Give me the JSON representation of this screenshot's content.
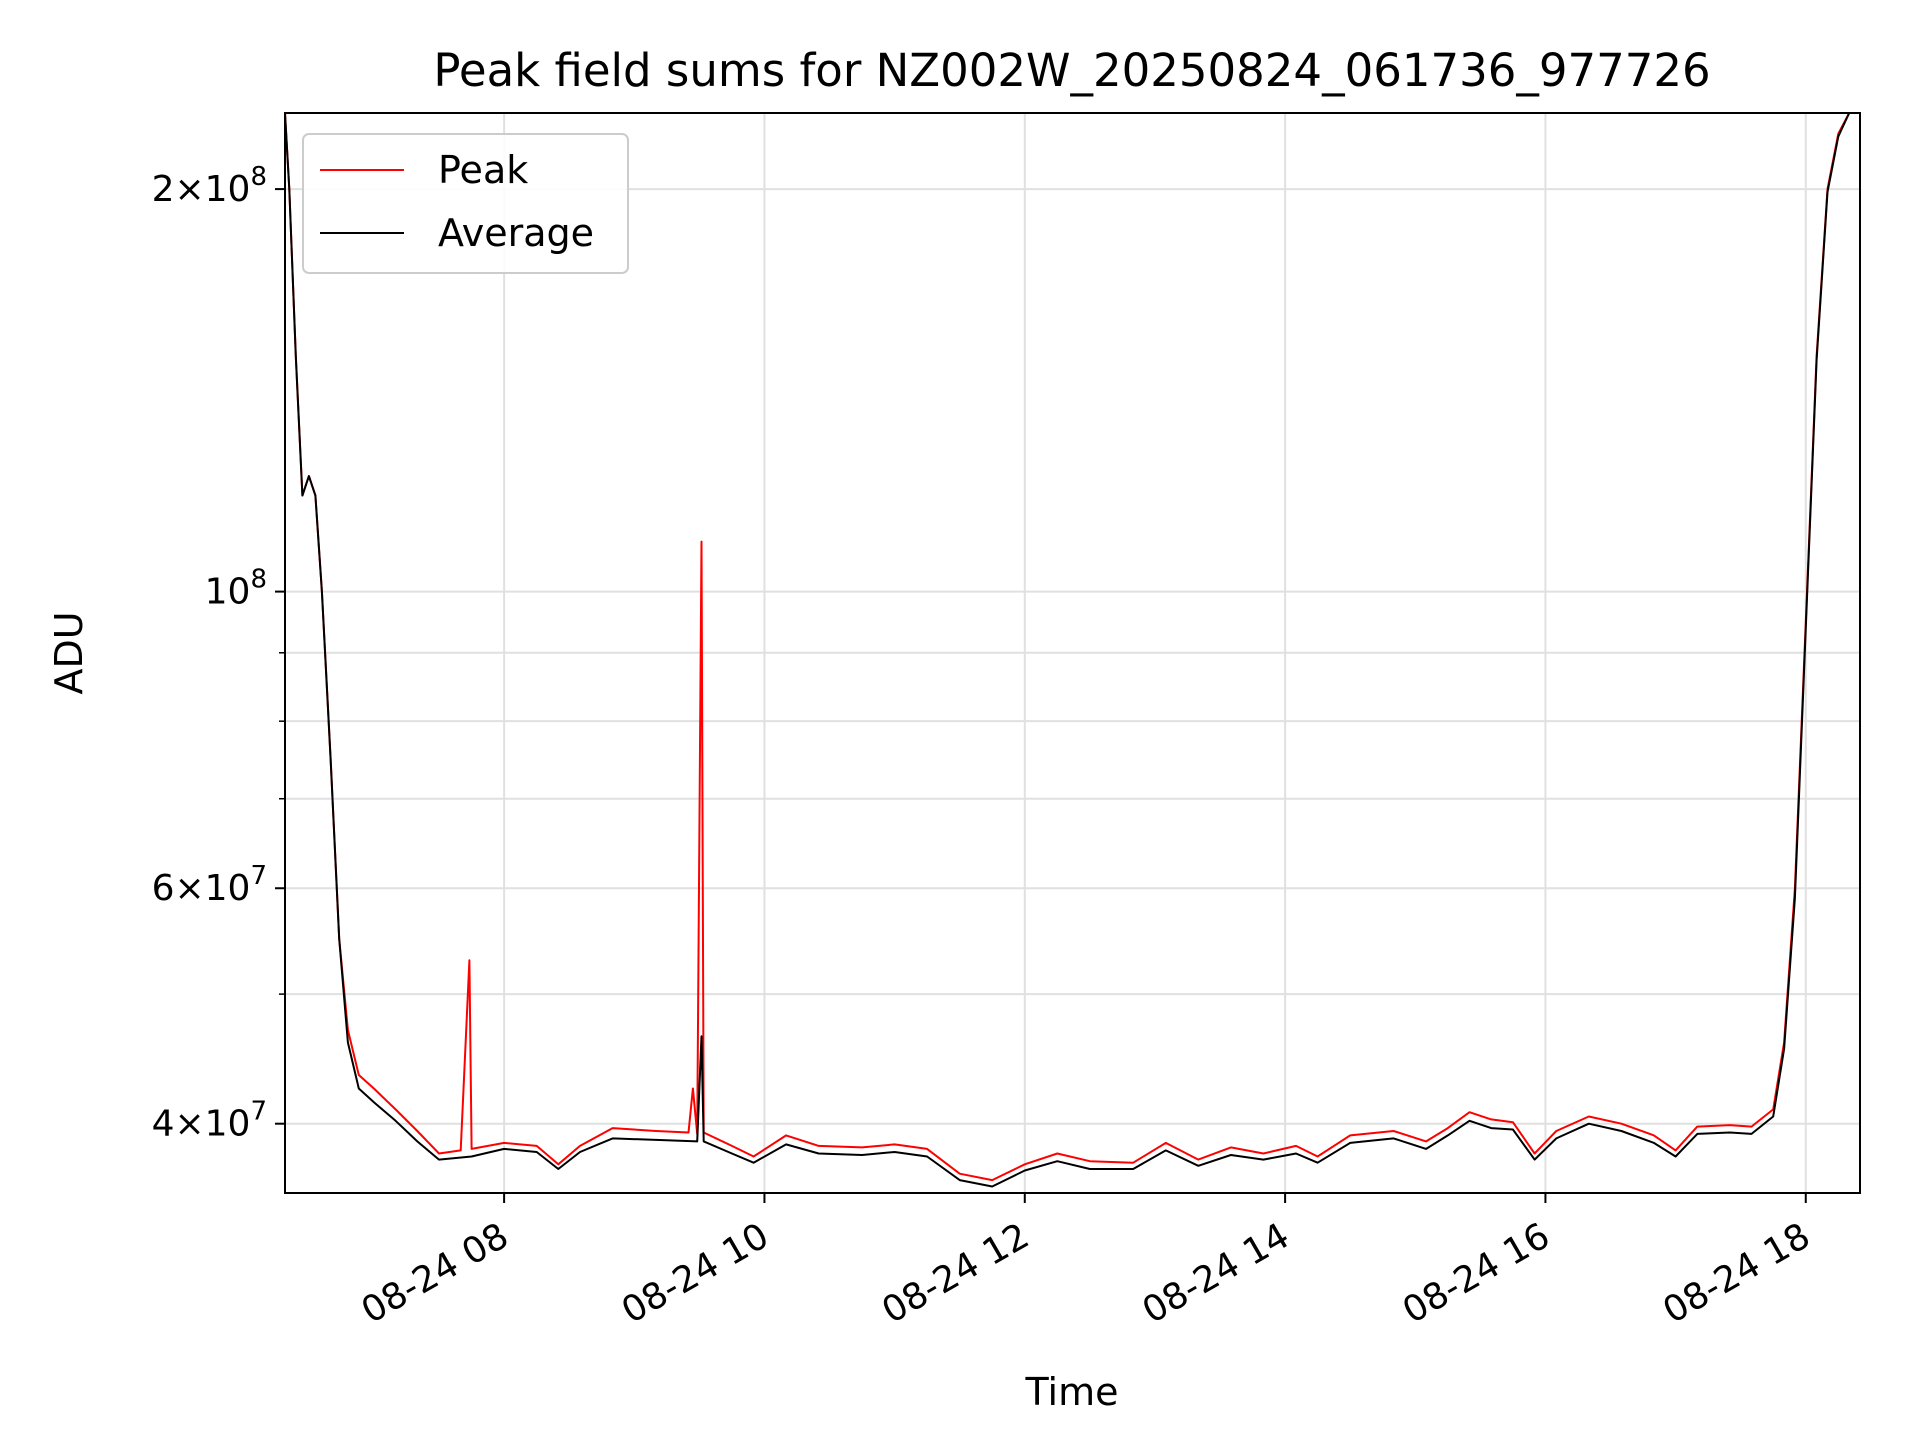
{
  "chart_data": {
    "type": "line",
    "title": "Peak field sums for NZ002W_20250824_061736_977726",
    "xlabel": "Time",
    "ylabel": "ADU",
    "xlim": [
      "2025-08-24 06:19",
      "2025-08-24 18:25"
    ],
    "ylim": [
      35500000,
      228000000
    ],
    "yscale": "log",
    "grid": true,
    "legend_position": "top-left",
    "x_ticks": [
      "2025-08-24 08:00",
      "2025-08-24 10:00",
      "2025-08-24 12:00",
      "2025-08-24 14:00",
      "2025-08-24 16:00",
      "2025-08-24 18:00"
    ],
    "x_tick_labels": [
      "08-24 08",
      "08-24 10",
      "08-24 12",
      "08-24 14",
      "08-24 16",
      "08-24 18"
    ],
    "y_major_ticks": [
      {
        "value": 40000000,
        "mant": "4",
        "exp": "7"
      },
      {
        "value": 60000000,
        "mant": "6",
        "exp": "7"
      },
      {
        "value": 100000000,
        "mant": "",
        "exp": "8"
      },
      {
        "value": 200000000,
        "mant": "2",
        "exp": "8"
      }
    ],
    "y_minor_gridlines": [
      50000000,
      70000000,
      80000000,
      90000000
    ],
    "series": [
      {
        "name": "Peak",
        "color": "#ff0000",
        "points": [
          [
            "2025-08-24 06:19",
            228000000
          ],
          [
            "2025-08-24 06:21",
            200000000
          ],
          [
            "2025-08-24 06:24",
            150000000
          ],
          [
            "2025-08-24 06:27",
            118000000
          ],
          [
            "2025-08-24 06:30",
            122000000
          ],
          [
            "2025-08-24 06:33",
            118000000
          ],
          [
            "2025-08-24 06:36",
            100000000
          ],
          [
            "2025-08-24 06:40",
            75000000
          ],
          [
            "2025-08-24 06:44",
            55000000
          ],
          [
            "2025-08-24 06:48",
            47000000
          ],
          [
            "2025-08-24 06:53",
            43500000
          ],
          [
            "2025-08-24 07:00",
            42500000
          ],
          [
            "2025-08-24 07:10",
            41000000
          ],
          [
            "2025-08-24 07:20",
            39500000
          ],
          [
            "2025-08-24 07:30",
            38000000
          ],
          [
            "2025-08-24 07:40",
            38200000
          ],
          [
            "2025-08-24 07:44",
            53000000
          ],
          [
            "2025-08-24 07:45",
            38300000
          ],
          [
            "2025-08-24 08:00",
            38700000
          ],
          [
            "2025-08-24 08:15",
            38500000
          ],
          [
            "2025-08-24 08:25",
            37300000
          ],
          [
            "2025-08-24 08:35",
            38500000
          ],
          [
            "2025-08-24 08:50",
            39700000
          ],
          [
            "2025-08-24 09:10",
            39500000
          ],
          [
            "2025-08-24 09:25",
            39400000
          ],
          [
            "2025-08-24 09:27",
            42500000
          ],
          [
            "2025-08-24 09:29",
            39300000
          ],
          [
            "2025-08-24 09:31",
            109000000
          ],
          [
            "2025-08-24 09:32",
            39400000
          ],
          [
            "2025-08-24 09:45",
            38500000
          ],
          [
            "2025-08-24 09:55",
            37800000
          ],
          [
            "2025-08-24 10:10",
            39200000
          ],
          [
            "2025-08-24 10:25",
            38500000
          ],
          [
            "2025-08-24 10:45",
            38400000
          ],
          [
            "2025-08-24 11:00",
            38600000
          ],
          [
            "2025-08-24 11:15",
            38300000
          ],
          [
            "2025-08-24 11:30",
            36700000
          ],
          [
            "2025-08-24 11:45",
            36300000
          ],
          [
            "2025-08-24 12:00",
            37300000
          ],
          [
            "2025-08-24 12:15",
            38000000
          ],
          [
            "2025-08-24 12:30",
            37500000
          ],
          [
            "2025-08-24 12:50",
            37400000
          ],
          [
            "2025-08-24 13:05",
            38700000
          ],
          [
            "2025-08-24 13:20",
            37600000
          ],
          [
            "2025-08-24 13:35",
            38400000
          ],
          [
            "2025-08-24 13:50",
            38000000
          ],
          [
            "2025-08-24 14:05",
            38500000
          ],
          [
            "2025-08-24 14:15",
            37800000
          ],
          [
            "2025-08-24 14:30",
            39200000
          ],
          [
            "2025-08-24 14:50",
            39500000
          ],
          [
            "2025-08-24 15:05",
            38800000
          ],
          [
            "2025-08-24 15:15",
            39700000
          ],
          [
            "2025-08-24 15:25",
            40800000
          ],
          [
            "2025-08-24 15:35",
            40300000
          ],
          [
            "2025-08-24 15:45",
            40100000
          ],
          [
            "2025-08-24 15:55",
            38000000
          ],
          [
            "2025-08-24 16:05",
            39500000
          ],
          [
            "2025-08-24 16:20",
            40500000
          ],
          [
            "2025-08-24 16:35",
            40000000
          ],
          [
            "2025-08-24 16:50",
            39200000
          ],
          [
            "2025-08-24 17:00",
            38200000
          ],
          [
            "2025-08-24 17:10",
            39800000
          ],
          [
            "2025-08-24 17:25",
            39900000
          ],
          [
            "2025-08-24 17:35",
            39800000
          ],
          [
            "2025-08-24 17:45",
            41000000
          ],
          [
            "2025-08-24 17:50",
            46000000
          ],
          [
            "2025-08-24 17:55",
            60000000
          ],
          [
            "2025-08-24 18:00",
            95000000
          ],
          [
            "2025-08-24 18:05",
            150000000
          ],
          [
            "2025-08-24 18:10",
            200000000
          ],
          [
            "2025-08-24 18:15",
            220000000
          ],
          [
            "2025-08-24 18:20",
            228000000
          ]
        ]
      },
      {
        "name": "Average",
        "color": "#000000",
        "points": [
          [
            "2025-08-24 06:19",
            228000000
          ],
          [
            "2025-08-24 06:21",
            200000000
          ],
          [
            "2025-08-24 06:24",
            150000000
          ],
          [
            "2025-08-24 06:27",
            118000000
          ],
          [
            "2025-08-24 06:30",
            122000000
          ],
          [
            "2025-08-24 06:33",
            118000000
          ],
          [
            "2025-08-24 06:36",
            100000000
          ],
          [
            "2025-08-24 06:40",
            75000000
          ],
          [
            "2025-08-24 06:44",
            55000000
          ],
          [
            "2025-08-24 06:48",
            46000000
          ],
          [
            "2025-08-24 06:53",
            42500000
          ],
          [
            "2025-08-24 07:00",
            41500000
          ],
          [
            "2025-08-24 07:10",
            40200000
          ],
          [
            "2025-08-24 07:20",
            38800000
          ],
          [
            "2025-08-24 07:30",
            37600000
          ],
          [
            "2025-08-24 07:45",
            37800000
          ],
          [
            "2025-08-24 08:00",
            38300000
          ],
          [
            "2025-08-24 08:15",
            38100000
          ],
          [
            "2025-08-24 08:25",
            37000000
          ],
          [
            "2025-08-24 08:35",
            38100000
          ],
          [
            "2025-08-24 08:50",
            39000000
          ],
          [
            "2025-08-24 09:10",
            38900000
          ],
          [
            "2025-08-24 09:29",
            38800000
          ],
          [
            "2025-08-24 09:31",
            46500000
          ],
          [
            "2025-08-24 09:32",
            38800000
          ],
          [
            "2025-08-24 09:45",
            38000000
          ],
          [
            "2025-08-24 09:55",
            37400000
          ],
          [
            "2025-08-24 10:10",
            38600000
          ],
          [
            "2025-08-24 10:25",
            38000000
          ],
          [
            "2025-08-24 10:45",
            37900000
          ],
          [
            "2025-08-24 11:00",
            38100000
          ],
          [
            "2025-08-24 11:15",
            37800000
          ],
          [
            "2025-08-24 11:30",
            36300000
          ],
          [
            "2025-08-24 11:45",
            35900000
          ],
          [
            "2025-08-24 12:00",
            36900000
          ],
          [
            "2025-08-24 12:15",
            37500000
          ],
          [
            "2025-08-24 12:30",
            37000000
          ],
          [
            "2025-08-24 12:50",
            37000000
          ],
          [
            "2025-08-24 13:05",
            38200000
          ],
          [
            "2025-08-24 13:20",
            37200000
          ],
          [
            "2025-08-24 13:35",
            37900000
          ],
          [
            "2025-08-24 13:50",
            37600000
          ],
          [
            "2025-08-24 14:05",
            38000000
          ],
          [
            "2025-08-24 14:15",
            37400000
          ],
          [
            "2025-08-24 14:30",
            38700000
          ],
          [
            "2025-08-24 14:50",
            39000000
          ],
          [
            "2025-08-24 15:05",
            38300000
          ],
          [
            "2025-08-24 15:15",
            39200000
          ],
          [
            "2025-08-24 15:25",
            40200000
          ],
          [
            "2025-08-24 15:35",
            39700000
          ],
          [
            "2025-08-24 15:45",
            39600000
          ],
          [
            "2025-08-24 15:55",
            37600000
          ],
          [
            "2025-08-24 16:05",
            39000000
          ],
          [
            "2025-08-24 16:20",
            40000000
          ],
          [
            "2025-08-24 16:35",
            39500000
          ],
          [
            "2025-08-24 16:50",
            38700000
          ],
          [
            "2025-08-24 17:00",
            37800000
          ],
          [
            "2025-08-24 17:10",
            39300000
          ],
          [
            "2025-08-24 17:25",
            39400000
          ],
          [
            "2025-08-24 17:35",
            39300000
          ],
          [
            "2025-08-24 17:45",
            40500000
          ],
          [
            "2025-08-24 17:50",
            45500000
          ],
          [
            "2025-08-24 17:55",
            59000000
          ],
          [
            "2025-08-24 18:00",
            94000000
          ],
          [
            "2025-08-24 18:05",
            149000000
          ],
          [
            "2025-08-24 18:10",
            199000000
          ],
          [
            "2025-08-24 18:15",
            219000000
          ],
          [
            "2025-08-24 18:20",
            228000000
          ]
        ]
      }
    ]
  }
}
